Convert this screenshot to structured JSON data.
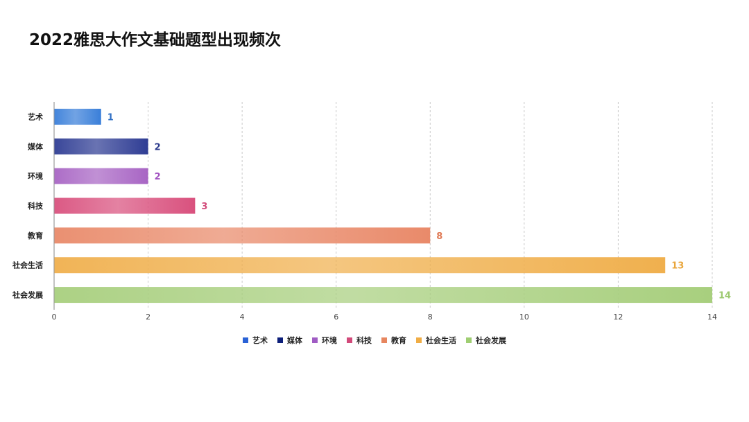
{
  "chart_title": "2022雅思大作文基础题型出现频次",
  "chart_data": {
    "type": "bar",
    "orientation": "horizontal",
    "title": "2022雅思大作文基础题型出现频次",
    "categories": [
      "艺术",
      "媒体",
      "环境",
      "科技",
      "教育",
      "社会生活",
      "社会发展"
    ],
    "values": [
      1,
      2,
      2,
      3,
      8,
      13,
      14
    ],
    "xlim": [
      0,
      14
    ],
    "xticks": [
      0,
      2,
      4,
      6,
      8,
      10,
      12,
      14
    ],
    "grid": "vertical dashed",
    "legend_position": "bottom",
    "colors": [
      "#3a7fd9",
      "#2f3d94",
      "#a865c4",
      "#d9517e",
      "#e98a6a",
      "#f0b04e",
      "#a8cf7e"
    ],
    "label_colors": [
      "#2f6fc4",
      "#2b3a8c",
      "#a050bf",
      "#d24a7a",
      "#e07a55",
      "#e9a63c",
      "#9cc96f"
    ]
  },
  "legend": [
    {
      "label": "艺术",
      "color": "#2a62d6"
    },
    {
      "label": "媒体",
      "color": "#0d1f7a"
    },
    {
      "label": "环境",
      "color": "#a05cc4"
    },
    {
      "label": "科技",
      "color": "#d24a7a"
    },
    {
      "label": "教育",
      "color": "#e7865f"
    },
    {
      "label": "社会生活",
      "color": "#f0ad45"
    },
    {
      "label": "社会发展",
      "color": "#9fce72"
    }
  ]
}
